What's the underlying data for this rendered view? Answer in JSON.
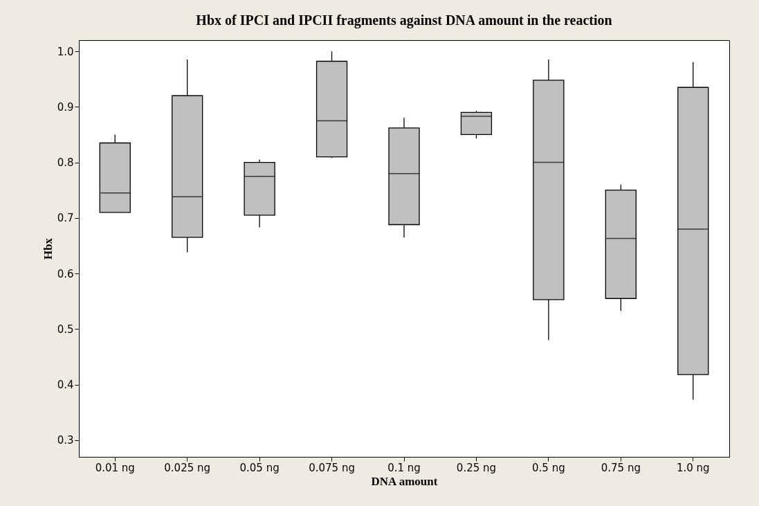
{
  "chart_data": {
    "type": "box",
    "title": "Hbx of IPCI and IPCII fragments against DNA amount in the reaction",
    "xlabel": "DNA amount",
    "ylabel": "Hbx",
    "categories": [
      "0.01 ng",
      "0.025 ng",
      "0.05 ng",
      "0.075 ng",
      "0.1 ng",
      "0.25 ng",
      "0.5 ng",
      "0.75 ng",
      "1.0 ng"
    ],
    "boxes": [
      {
        "low": 0.71,
        "q1": 0.71,
        "median": 0.745,
        "q3": 0.835,
        "high": 0.85
      },
      {
        "low": 0.638,
        "q1": 0.665,
        "median": 0.738,
        "q3": 0.92,
        "high": 0.985
      },
      {
        "low": 0.683,
        "q1": 0.705,
        "median": 0.775,
        "q3": 0.8,
        "high": 0.805
      },
      {
        "low": 0.808,
        "q1": 0.81,
        "median": 0.875,
        "q3": 0.982,
        "high": 1.0
      },
      {
        "low": 0.665,
        "q1": 0.688,
        "median": 0.78,
        "q3": 0.862,
        "high": 0.88
      },
      {
        "low": 0.843,
        "q1": 0.85,
        "median": 0.883,
        "q3": 0.89,
        "high": 0.893
      },
      {
        "low": 0.48,
        "q1": 0.553,
        "median": 0.8,
        "q3": 0.948,
        "high": 0.985
      },
      {
        "low": 0.533,
        "q1": 0.555,
        "median": 0.663,
        "q3": 0.75,
        "high": 0.76
      },
      {
        "low": 0.373,
        "q1": 0.418,
        "median": 0.68,
        "q3": 0.935,
        "high": 0.98
      }
    ],
    "color": "#c0c0c0",
    "ylim": [
      0.27,
      1.02
    ],
    "yticks": [
      0.3,
      0.4,
      0.5,
      0.6,
      0.7,
      0.8,
      0.9,
      {
        "value": 1.0,
        "label": "1.0"
      }
    ],
    "grid": false
  }
}
